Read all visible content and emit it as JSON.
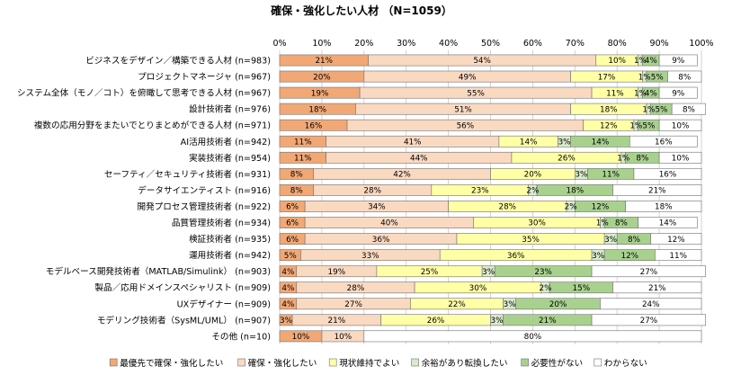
{
  "chart_data": {
    "type": "bar",
    "orientation": "horizontal",
    "stacked": true,
    "percent_stacked": true,
    "title": "確保・強化したい人材 （N=1059）",
    "xlim": [
      0,
      100
    ],
    "x_ticks": [
      "0%",
      "10%",
      "20%",
      "30%",
      "40%",
      "50%",
      "60%",
      "70%",
      "80%",
      "90%",
      "100%"
    ],
    "grid": true,
    "legend_position": "bottom",
    "categories": [
      "ビジネスをデザイン／構築できる人材 (n=983)",
      "プロジェクトマネージャ (n=967)",
      "システム全体（モノ／コト）を俯瞰して思考できる人材 (n=967)",
      "設計技術者 (n=976)",
      "複数の応用分野をまたいでとりまとめができる人材 (n=971)",
      "AI活用技術者 (n=942)",
      "実装技術者 (n=954)",
      "セーフティ／セキュリティ技術者 (n=931)",
      "データサイエンティスト (n=916)",
      "開発プロセス管理技術者 (n=922)",
      "品質管理技術者 (n=934)",
      "検証技術者 (n=935)",
      "運用技術者 (n=942)",
      "モデルベース開発技術者（MATLAB/Simulink） (n=903)",
      "製品／応用ドメインスペシャリスト (n=909)",
      "UXデザイナー (n=909)",
      "モデリング技術者（SysML/UML） (n=907)",
      "その他 (n=10)"
    ],
    "series": [
      {
        "name": "最優先で確保・強化したい",
        "color": "#f2a875",
        "values": [
          21,
          20,
          19,
          18,
          16,
          11,
          11,
          8,
          8,
          6,
          6,
          6,
          5,
          4,
          4,
          4,
          3,
          10
        ]
      },
      {
        "name": "確保・強化したい",
        "color": "#fad9c1",
        "values": [
          54,
          49,
          55,
          51,
          56,
          41,
          44,
          42,
          28,
          34,
          40,
          36,
          33,
          19,
          28,
          27,
          21,
          10
        ]
      },
      {
        "name": "現状維持でよい",
        "color": "#ffffa6",
        "values": [
          10,
          17,
          11,
          18,
          12,
          14,
          26,
          20,
          23,
          28,
          30,
          35,
          36,
          25,
          30,
          22,
          26,
          0
        ]
      },
      {
        "name": "余裕があり転換したい",
        "color": "#d9ecca",
        "values": [
          1,
          1,
          1,
          1,
          1,
          3,
          1,
          3,
          2,
          2,
          1,
          3,
          3,
          3,
          2,
          3,
          3,
          0
        ]
      },
      {
        "name": "必要性がない",
        "color": "#a9d18e",
        "values": [
          4,
          5,
          4,
          5,
          5,
          14,
          8,
          11,
          18,
          12,
          8,
          8,
          12,
          23,
          15,
          20,
          21,
          0
        ]
      },
      {
        "name": "わからない",
        "color": "#ffffff",
        "values": [
          9,
          8,
          9,
          8,
          10,
          16,
          10,
          16,
          21,
          18,
          14,
          12,
          11,
          27,
          21,
          24,
          27,
          80
        ]
      }
    ]
  }
}
